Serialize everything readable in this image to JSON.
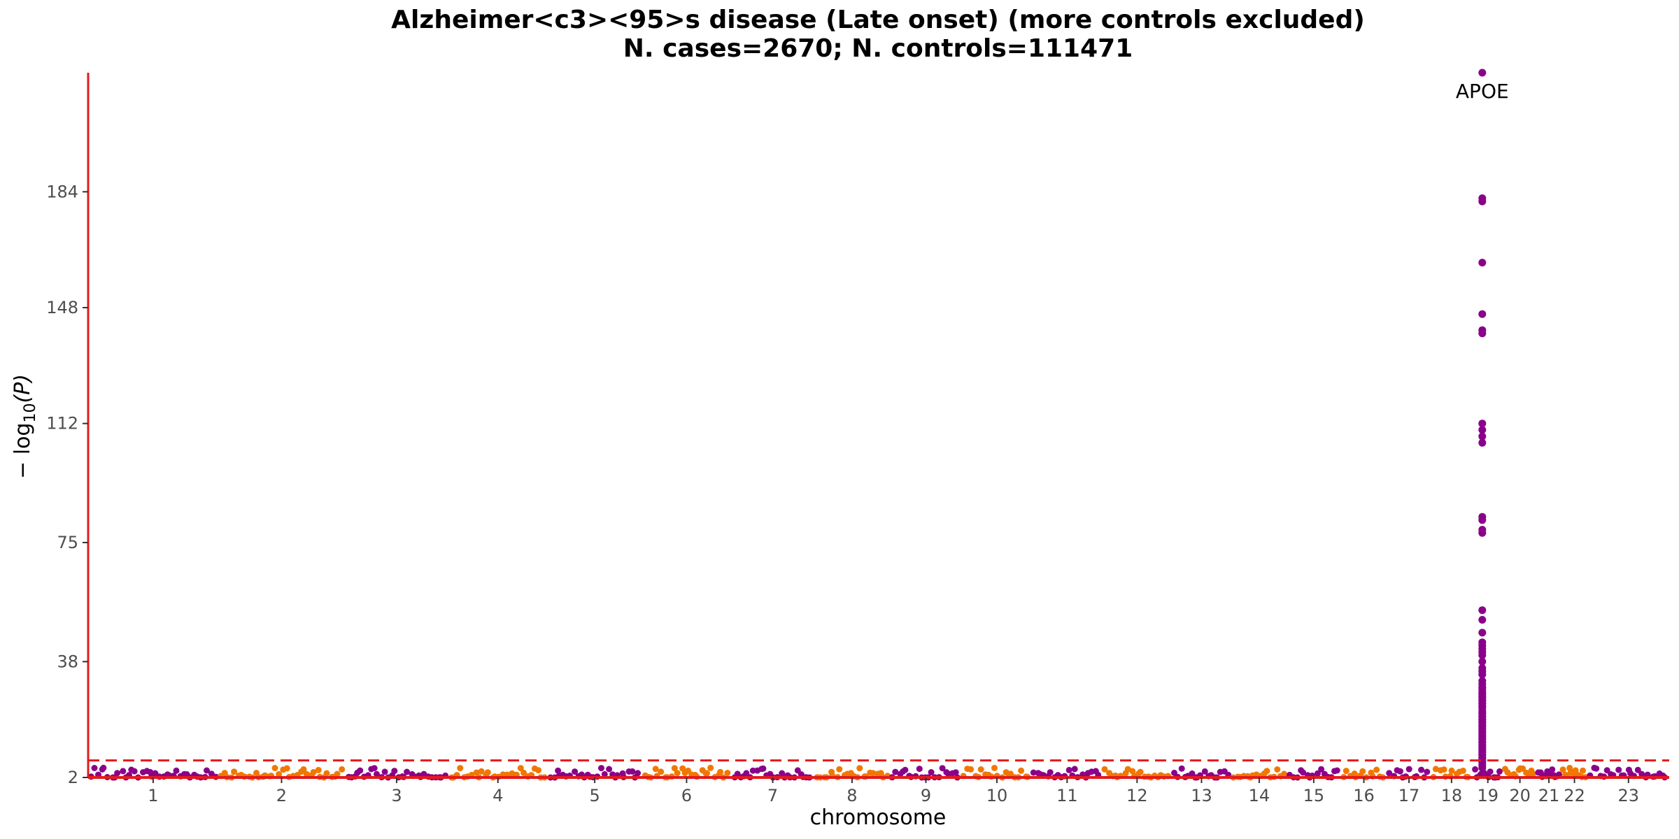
{
  "chart_data": {
    "type": "scatter",
    "subtype": "manhattan",
    "title_line1": "Alzheimer<c3><95>s disease (Late onset) (more controls excluded)",
    "title_line2": "N. cases=2670; N. controls=111471",
    "xlabel": "chromosome",
    "ylabel": "− log10(P)",
    "ylabel_parts": {
      "prefix": "− log",
      "subscript": "10",
      "suffix": "(P)"
    },
    "y_ticks": [
      2,
      38,
      75,
      112,
      148,
      184
    ],
    "ylim": [
      2,
      221
    ],
    "grid": false,
    "significance_line": {
      "y": 7.3,
      "style": "dashed",
      "color": "#e41a1c"
    },
    "axis_color": "#e41a1c",
    "colors": {
      "odd": "#8b008b",
      "even": "#f07800"
    },
    "chromosomes": [
      "1",
      "2",
      "3",
      "4",
      "5",
      "6",
      "7",
      "8",
      "9",
      "10",
      "11",
      "12",
      "13",
      "14",
      "15",
      "16",
      "17",
      "18",
      "19",
      "20",
      "21",
      "22",
      "23"
    ],
    "chromosome_sizes": [
      249,
      243,
      198,
      190,
      181,
      171,
      159,
      145,
      138,
      134,
      135,
      133,
      114,
      107,
      102,
      90,
      83,
      80,
      59,
      64,
      47,
      51,
      156
    ],
    "background_max": 5,
    "peak": {
      "chromosome": "19",
      "values": [
        221,
        182,
        181,
        162,
        146,
        141,
        140,
        112,
        110,
        108,
        106,
        83,
        82,
        79,
        78,
        54,
        51,
        47,
        44,
        43,
        42,
        41,
        40,
        38,
        36,
        35,
        34,
        32,
        31,
        30,
        28,
        27,
        26,
        25,
        24,
        22,
        21,
        20,
        19,
        18,
        17,
        16,
        15,
        14,
        13,
        12,
        11,
        10,
        9,
        8,
        7
      ]
    },
    "annotations": [
      {
        "label": "APOE",
        "chromosome": "19",
        "y": 221
      }
    ]
  }
}
